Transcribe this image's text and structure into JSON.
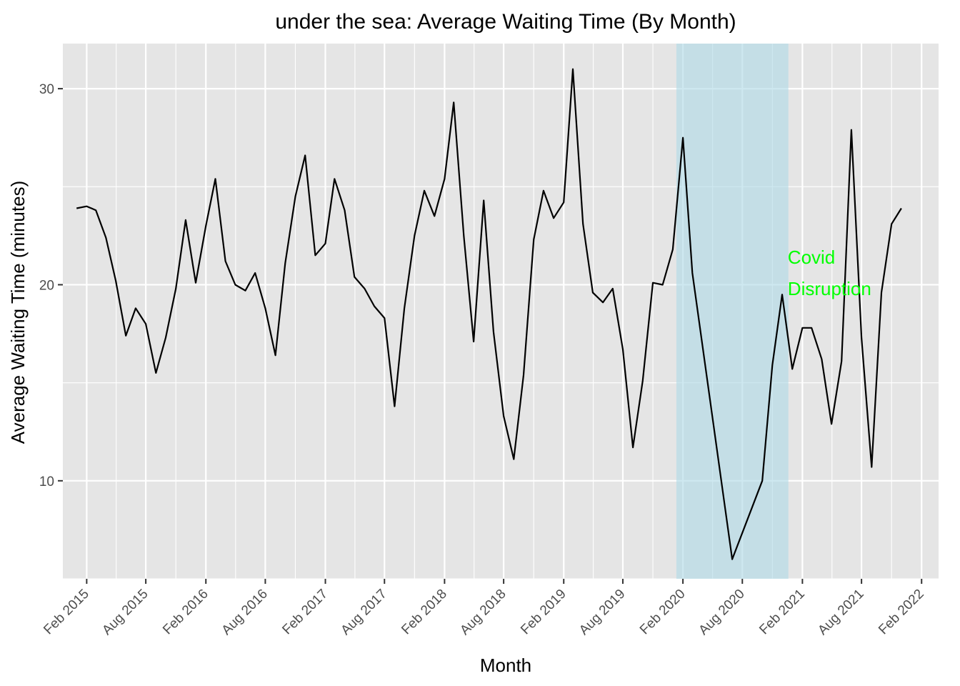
{
  "chart_data": {
    "type": "line",
    "title": "under the sea: Average Waiting Time (By Month)",
    "xlabel": "Month",
    "ylabel": "Average Waiting Time (minutes)",
    "xlim": [
      "2014-11-20",
      "2022-03-25"
    ],
    "ylim": [
      5.0,
      32.3
    ],
    "x_ticks": [
      "Feb 2015",
      "Aug 2015",
      "Feb 2016",
      "Aug 2016",
      "Feb 2017",
      "Aug 2017",
      "Feb 2018",
      "Aug 2018",
      "Feb 2019",
      "Aug 2019",
      "Feb 2020",
      "Aug 2020",
      "Feb 2021",
      "Aug 2021",
      "Feb 2022"
    ],
    "y_ticks": [
      10,
      20,
      30
    ],
    "grid": true,
    "panel_background": "#e5e5e5",
    "series": [
      {
        "color": "#000000",
        "x": [
          "2015-01",
          "2015-02",
          "2015-03",
          "2015-04",
          "2015-05",
          "2015-06",
          "2015-07",
          "2015-08",
          "2015-09",
          "2015-10",
          "2015-11",
          "2015-12",
          "2016-01",
          "2016-02",
          "2016-03",
          "2016-04",
          "2016-05",
          "2016-06",
          "2016-07",
          "2016-08",
          "2016-09",
          "2016-10",
          "2016-11",
          "2016-12",
          "2017-01",
          "2017-02",
          "2017-03",
          "2017-04",
          "2017-05",
          "2017-06",
          "2017-07",
          "2017-08",
          "2017-09",
          "2017-10",
          "2017-11",
          "2017-12",
          "2018-01",
          "2018-02",
          "2018-03",
          "2018-04",
          "2018-05",
          "2018-06",
          "2018-07",
          "2018-08",
          "2018-09",
          "2018-10",
          "2018-11",
          "2018-12",
          "2019-01",
          "2019-02",
          "2019-03",
          "2019-04",
          "2019-05",
          "2019-06",
          "2019-07",
          "2019-08",
          "2019-09",
          "2019-10",
          "2019-11",
          "2019-12",
          "2020-01",
          "2020-02",
          "2020-03",
          "2020-07",
          "2020-10",
          "2020-11",
          "2020-12",
          "2021-01",
          "2021-02",
          "2021-03",
          "2021-04",
          "2021-05",
          "2021-06",
          "2021-07",
          "2021-08",
          "2021-09",
          "2021-10",
          "2021-11",
          "2021-12",
          "2022-01"
        ],
        "values": [
          23.9,
          24.0,
          23.8,
          22.4,
          20.2,
          17.4,
          18.8,
          18.0,
          15.5,
          17.3,
          19.8,
          23.3,
          20.1,
          23.0,
          25.4,
          21.2,
          20.0,
          19.7,
          20.6,
          18.8,
          16.4,
          21.1,
          24.5,
          26.6,
          21.5,
          22.1,
          25.4,
          23.8,
          20.4,
          19.8,
          18.9,
          18.3,
          13.8,
          18.8,
          22.5,
          24.8,
          23.5,
          25.4,
          29.3,
          22.5,
          17.1,
          24.3,
          17.6,
          13.3,
          11.1,
          15.4,
          22.3,
          24.8,
          23.4,
          24.2,
          31.0,
          23.1,
          19.6,
          19.1,
          19.8,
          16.7,
          11.7,
          15.1,
          20.1,
          20.0,
          21.8,
          27.5,
          20.6,
          6.0,
          10.0,
          15.9,
          19.5,
          15.7,
          17.8,
          17.8,
          16.2,
          12.9,
          16.1,
          27.9,
          17.3,
          10.7,
          19.6,
          23.1,
          23.9,
          null
        ]
      }
    ],
    "highlight": {
      "start": "2020-01-12",
      "end": "2020-12-20",
      "color": "#add8e6",
      "opacity": 0.6
    },
    "annotation": {
      "lines": [
        "Covid",
        "Disruption"
      ],
      "x": "2020-12-18",
      "y": [
        21.4,
        19.8
      ],
      "color": "#00ff00"
    }
  }
}
